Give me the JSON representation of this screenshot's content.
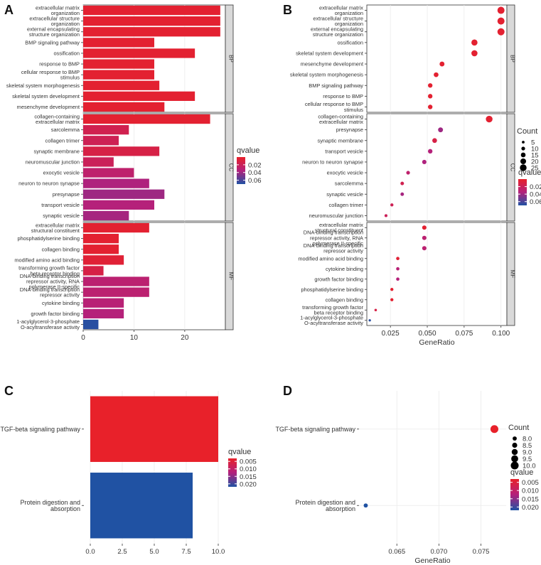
{
  "colors": {
    "low": "#e8212a",
    "mid": "#b3217c",
    "high": "#2052a3"
  },
  "legend": {
    "qvalue_title": "qvalue",
    "count_title": "Count"
  },
  "chart_data": [
    {
      "panel": "A",
      "type": "bar",
      "xlim": [
        0,
        28
      ],
      "xticks": [
        0,
        10,
        20
      ],
      "qrange": [
        0,
        0.07
      ],
      "legend_ticks": [
        0.02,
        0.04,
        0.06
      ],
      "legend_tick_labels": [
        "0.02",
        "0.04",
        "0.06"
      ],
      "facets": [
        {
          "label": "BP",
          "rows": [
            {
              "term": "extracellular matrix\norganization",
              "count": 27,
              "q": 0.003
            },
            {
              "term": "extracellular structure\norganization",
              "count": 27,
              "q": 0.003
            },
            {
              "term": "external encapsulating\nstructure organization",
              "count": 27,
              "q": 0.003
            },
            {
              "term": "BMP signaling pathway",
              "count": 14,
              "q": 0.003
            },
            {
              "term": "ossification",
              "count": 22,
              "q": 0.003
            },
            {
              "term": "response to BMP",
              "count": 14,
              "q": 0.003
            },
            {
              "term": "cellular response to BMP\nstimulus",
              "count": 14,
              "q": 0.003
            },
            {
              "term": "skeletal system morphogenesis",
              "count": 15,
              "q": 0.003
            },
            {
              "term": "skeletal system development",
              "count": 22,
              "q": 0.003
            },
            {
              "term": "mesenchyme development",
              "count": 16,
              "q": 0.003
            }
          ]
        },
        {
          "label": "CC",
          "rows": [
            {
              "term": "collagen-containing\nextracellular matrix",
              "count": 25,
              "q": 0.003
            },
            {
              "term": "sarcolemma",
              "count": 9,
              "q": 0.016
            },
            {
              "term": "collagen trimer",
              "count": 7,
              "q": 0.018
            },
            {
              "term": "synaptic membrane",
              "count": 15,
              "q": 0.012
            },
            {
              "term": "neuromuscular junction",
              "count": 6,
              "q": 0.02
            },
            {
              "term": "exocytic vesicle",
              "count": 10,
              "q": 0.028
            },
            {
              "term": "neuron to neuron synapse",
              "count": 13,
              "q": 0.036
            },
            {
              "term": "presynapse",
              "count": 16,
              "q": 0.04
            },
            {
              "term": "transport vesicle",
              "count": 14,
              "q": 0.034
            },
            {
              "term": "synaptic vesicle",
              "count": 9,
              "q": 0.038
            }
          ]
        },
        {
          "label": "MF",
          "rows": [
            {
              "term": "extracellular matrix\nstructural constituent",
              "count": 13,
              "q": 0.003
            },
            {
              "term": "phosphatidylserine binding",
              "count": 7,
              "q": 0.003
            },
            {
              "term": "collagen binding",
              "count": 7,
              "q": 0.003
            },
            {
              "term": "modified amino acid binding",
              "count": 8,
              "q": 0.005
            },
            {
              "term": "transforming growth factor\nbeta receptor binding",
              "count": 4,
              "q": 0.012
            },
            {
              "term": "DNA-binding transcription\nrepressor activity, RNA\npolymerase II-specific",
              "count": 13,
              "q": 0.03
            },
            {
              "term": "DNA-binding transcription\nrepressor activity",
              "count": 13,
              "q": 0.03
            },
            {
              "term": "cytokine binding",
              "count": 8,
              "q": 0.032
            },
            {
              "term": "growth factor binding",
              "count": 8,
              "q": 0.034
            },
            {
              "term": "1-acylglycerol-3-phosphate\nO-acyltransferase activity",
              "count": 3,
              "q": 0.068
            }
          ]
        }
      ]
    },
    {
      "panel": "B",
      "type": "scatter",
      "xlabel": "GeneRatio",
      "xlim": [
        0.009,
        0.104
      ],
      "xticks": [
        0.025,
        0.05,
        0.075,
        0.1
      ],
      "xtick_labels": [
        "0.025",
        "0.050",
        "0.075",
        "0.100"
      ],
      "qrange": [
        0,
        0.07
      ],
      "legend_ticks": [
        0.02,
        0.04,
        0.06
      ],
      "legend_tick_labels": [
        "0.02",
        "0.04",
        "0.06"
      ],
      "size_legend": [
        5,
        10,
        15,
        20,
        25
      ],
      "size_range": [
        2,
        27
      ],
      "facets": [
        {
          "label": "BP",
          "rows": [
            {
              "term": "extracellular matrix\norganization",
              "ratio": 0.1,
              "count": 27,
              "q": 0.003
            },
            {
              "term": "extracellular structure\norganization",
              "ratio": 0.1,
              "count": 27,
              "q": 0.003
            },
            {
              "term": "external encapsulating\nstructure organization",
              "ratio": 0.1,
              "count": 27,
              "q": 0.003
            },
            {
              "term": "ossification",
              "ratio": 0.082,
              "count": 22,
              "q": 0.003
            },
            {
              "term": "skeletal system development",
              "ratio": 0.082,
              "count": 22,
              "q": 0.003
            },
            {
              "term": "mesenchyme development",
              "ratio": 0.06,
              "count": 16,
              "q": 0.003
            },
            {
              "term": "skeletal system morphogenesis",
              "ratio": 0.056,
              "count": 15,
              "q": 0.003
            },
            {
              "term": "BMP signaling pathway",
              "ratio": 0.052,
              "count": 14,
              "q": 0.003
            },
            {
              "term": "response to BMP",
              "ratio": 0.052,
              "count": 14,
              "q": 0.003
            },
            {
              "term": "cellular response to BMP\nstimulus",
              "ratio": 0.052,
              "count": 14,
              "q": 0.003
            }
          ]
        },
        {
          "label": "CC",
          "rows": [
            {
              "term": "collagen-containing\nextracellular matrix",
              "ratio": 0.092,
              "count": 25,
              "q": 0.003
            },
            {
              "term": "presynapse",
              "ratio": 0.059,
              "count": 16,
              "q": 0.04
            },
            {
              "term": "synaptic membrane",
              "ratio": 0.055,
              "count": 15,
              "q": 0.012
            },
            {
              "term": "transport vesicle",
              "ratio": 0.052,
              "count": 14,
              "q": 0.034
            },
            {
              "term": "neuron to neuron synapse",
              "ratio": 0.048,
              "count": 13,
              "q": 0.036
            },
            {
              "term": "exocytic vesicle",
              "ratio": 0.037,
              "count": 10,
              "q": 0.028
            },
            {
              "term": "sarcolemma",
              "ratio": 0.033,
              "count": 9,
              "q": 0.016
            },
            {
              "term": "synaptic vesicle",
              "ratio": 0.033,
              "count": 9,
              "q": 0.038
            },
            {
              "term": "collagen trimer",
              "ratio": 0.026,
              "count": 7,
              "q": 0.018
            },
            {
              "term": "neuromuscular junction",
              "ratio": 0.022,
              "count": 6,
              "q": 0.02
            }
          ]
        },
        {
          "label": "MF",
          "rows": [
            {
              "term": "extracellular matrix\nstructural constituent",
              "ratio": 0.048,
              "count": 13,
              "q": 0.003
            },
            {
              "term": "DNA-binding transcription\nrepressor activity, RNA\npolymerase II-specific",
              "ratio": 0.048,
              "count": 13,
              "q": 0.03
            },
            {
              "term": "DNA-binding transcription\nrepressor activity",
              "ratio": 0.048,
              "count": 13,
              "q": 0.03
            },
            {
              "term": "modified amino acid binding",
              "ratio": 0.03,
              "count": 8,
              "q": 0.005
            },
            {
              "term": "cytokine binding",
              "ratio": 0.03,
              "count": 8,
              "q": 0.032
            },
            {
              "term": "growth factor binding",
              "ratio": 0.03,
              "count": 8,
              "q": 0.034
            },
            {
              "term": "phosphatidylserine binding",
              "ratio": 0.026,
              "count": 7,
              "q": 0.003
            },
            {
              "term": "collagen binding",
              "ratio": 0.026,
              "count": 7,
              "q": 0.003
            },
            {
              "term": "transforming growth factor\nbeta receptor binding",
              "ratio": 0.015,
              "count": 4,
              "q": 0.012
            },
            {
              "term": "1-acylglycerol-3-phosphate\nO-acyltransferase activity",
              "ratio": 0.011,
              "count": 3,
              "q": 0.068
            }
          ]
        }
      ]
    },
    {
      "panel": "C",
      "type": "bar",
      "xlim": [
        -0.5,
        10.5
      ],
      "xticks": [
        0,
        2.5,
        5,
        7.5,
        10
      ],
      "xtick_labels": [
        "0.0",
        "2.5",
        "5.0",
        "7.5",
        "10.0"
      ],
      "qrange": [
        0.003,
        0.022
      ],
      "legend_ticks": [
        0.005,
        0.01,
        0.015,
        0.02
      ],
      "legend_tick_labels": [
        "0.005",
        "0.010",
        "0.015",
        "0.020"
      ],
      "rows": [
        {
          "term": "TGF-beta signaling pathway",
          "count": 10,
          "q": 0.003
        },
        {
          "term": "Protein digestion and\nabsorption",
          "count": 8,
          "q": 0.022
        }
      ]
    },
    {
      "panel": "D",
      "type": "scatter",
      "xlabel": "GeneRatio",
      "xlim": [
        0.0605,
        0.078
      ],
      "xticks": [
        0.065,
        0.07,
        0.075
      ],
      "xtick_labels": [
        "0.065",
        "0.070",
        "0.075"
      ],
      "qrange": [
        0.003,
        0.022
      ],
      "legend_ticks": [
        0.005,
        0.01,
        0.015,
        0.02
      ],
      "legend_tick_labels": [
        "0.005",
        "0.010",
        "0.015",
        "0.020"
      ],
      "size_legend": [
        8.0,
        8.5,
        9.0,
        9.5,
        10.0
      ],
      "size_legend_labels": [
        "8.0",
        "8.5",
        "9.0",
        "9.5",
        "10.0"
      ],
      "size_range": [
        7.6,
        10.2
      ],
      "rows": [
        {
          "term": "TGF-beta signaling pathway",
          "ratio": 0.0766,
          "count": 10,
          "q": 0.003
        },
        {
          "term": "Protein digestion and\nabsorption",
          "ratio": 0.0613,
          "count": 8,
          "q": 0.022
        }
      ]
    }
  ]
}
